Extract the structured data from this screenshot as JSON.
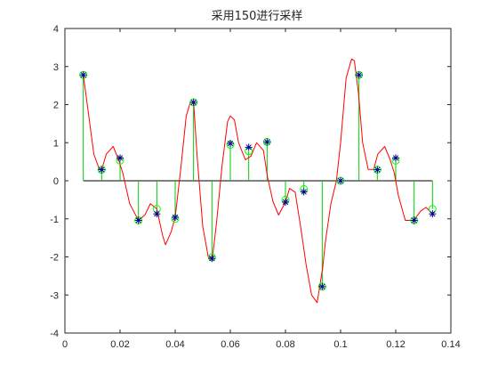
{
  "chart_data": {
    "type": "scatter",
    "title": "采用150进行采样",
    "xlabel": "",
    "ylabel": "",
    "xlim": [
      0,
      0.14
    ],
    "ylim": [
      -4,
      4
    ],
    "xticks": [
      0,
      0.02,
      0.04,
      0.06,
      0.08,
      0.1,
      0.12,
      0.14
    ],
    "xtick_labels": [
      "0",
      "0.02",
      "0.04",
      "0.06",
      "0.08",
      "0.1",
      "0.12",
      "0.14"
    ],
    "yticks": [
      -4,
      -3,
      -2,
      -1,
      0,
      1,
      2,
      3,
      4
    ],
    "ytick_labels": [
      "-4",
      "-3",
      "-2",
      "-1",
      "0",
      "1",
      "2",
      "3",
      "4"
    ],
    "grid": false,
    "colors": {
      "stem": "#00cc00",
      "star_marker": "#00008b",
      "circle_marker": "#00ff00",
      "curve": "#ff0000",
      "baseline": "#000000",
      "axes": "#262626"
    },
    "series": [
      {
        "style": "stem-circle",
        "x": [
          0.00667,
          0.01333,
          0.02,
          0.02667,
          0.03333,
          0.04,
          0.04667,
          0.05333,
          0.06,
          0.06667,
          0.07333,
          0.08,
          0.08667,
          0.09333,
          0.1,
          0.10667,
          0.11333,
          0.12,
          0.12667,
          0.13333
        ],
        "y": [
          2.78,
          0.29,
          0.53,
          -1.04,
          -0.74,
          -1.0,
          2.06,
          -2.01,
          0.95,
          0.78,
          1.02,
          -0.5,
          -0.22,
          -2.78,
          0.0,
          2.78,
          0.29,
          0.53,
          -1.04,
          -0.74
        ]
      },
      {
        "style": "star",
        "x": [
          0.00667,
          0.01333,
          0.02,
          0.02667,
          0.03333,
          0.04,
          0.04667,
          0.05333,
          0.06,
          0.06667,
          0.07333,
          0.08,
          0.08667,
          0.09333,
          0.1,
          0.10667,
          0.11333,
          0.12,
          0.12667,
          0.13333
        ],
        "y": [
          2.78,
          0.29,
          0.6,
          -1.04,
          -0.87,
          -0.96,
          2.06,
          -2.04,
          0.98,
          0.88,
          1.02,
          -0.56,
          -0.29,
          -2.78,
          0.0,
          2.78,
          0.29,
          0.6,
          -1.04,
          -0.87
        ]
      },
      {
        "style": "line",
        "x": [
          0.00667,
          0.0085,
          0.0105,
          0.0125,
          0.01333,
          0.015,
          0.0175,
          0.0195,
          0.021,
          0.0235,
          0.02667,
          0.029,
          0.031,
          0.03333,
          0.0355,
          0.0365,
          0.0385,
          0.04,
          0.042,
          0.044,
          0.0455,
          0.04667,
          0.048,
          0.05,
          0.052,
          0.0535,
          0.055,
          0.057,
          0.059,
          0.06,
          0.0615,
          0.063,
          0.0655,
          0.0675,
          0.0695,
          0.072,
          0.0735,
          0.0755,
          0.0775,
          0.08,
          0.0815,
          0.0835,
          0.0855,
          0.0875,
          0.0895,
          0.0915,
          0.0935,
          0.0945,
          0.0965,
          0.0985,
          0.1,
          0.102,
          0.104,
          0.105,
          0.1065,
          0.108,
          0.11,
          0.112,
          0.1135,
          0.116,
          0.118,
          0.1195,
          0.121,
          0.1235,
          0.1265,
          0.129,
          0.131,
          0.1333
        ],
        "y": [
          2.78,
          1.8,
          0.7,
          0.3,
          0.29,
          0.7,
          0.9,
          0.55,
          0.2,
          -0.6,
          -1.04,
          -0.9,
          -0.6,
          -0.74,
          -1.45,
          -1.68,
          -1.35,
          -0.96,
          0.3,
          1.7,
          2.06,
          2.06,
          0.6,
          -1.2,
          -2.0,
          -2.04,
          -1.1,
          0.4,
          1.55,
          1.7,
          1.6,
          1.0,
          0.55,
          0.65,
          1.0,
          0.8,
          0.1,
          -0.55,
          -0.9,
          -0.56,
          -0.2,
          -0.3,
          -1.2,
          -2.2,
          -3.0,
          -3.2,
          -2.3,
          -1.6,
          -0.6,
          0.0,
          1.0,
          2.7,
          3.2,
          3.15,
          2.3,
          1.0,
          0.3,
          0.3,
          0.7,
          0.9,
          0.55,
          0.2,
          -0.4,
          -1.04,
          -1.04,
          -0.8,
          -0.7,
          -0.87
        ]
      }
    ]
  }
}
